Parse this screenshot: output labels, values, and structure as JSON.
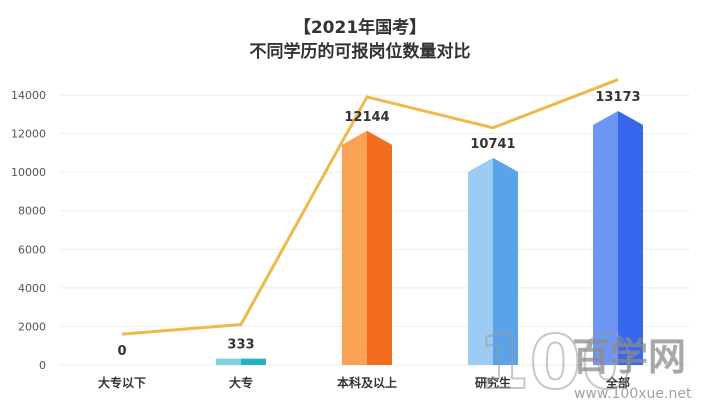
{
  "title_line1": "【2021年国考】",
  "title_line2": "不同学历的可报岗位数量对比",
  "watermark": {
    "text": "百学网",
    "url": "www.100xue.net",
    "logo": "100"
  },
  "colors": {
    "axis_text": "#555555",
    "grid": "#eeeeee",
    "line": "#f0b84a",
    "bar_gradients": [
      [
        "#7fd3db",
        "#27b3bd"
      ],
      [
        "#7fd3db",
        "#27b3bd"
      ],
      [
        "#f9a255",
        "#f26e1e"
      ],
      [
        "#9ccbf3",
        "#5ba3e8"
      ],
      [
        "#6f95f4",
        "#3767ec"
      ]
    ]
  },
  "chart_data": {
    "type": "bar",
    "title": "【2021年国考】 不同学历的可报岗位数量对比",
    "categories": [
      "大专以下",
      "大专",
      "本科及以上",
      "研究生",
      "全部"
    ],
    "values": [
      0,
      333,
      12144,
      10741,
      13173
    ],
    "data_labels": [
      "0",
      "333",
      "12144",
      "10741",
      "13173"
    ],
    "overlay_line": {
      "type": "line",
      "values": [
        1600,
        2100,
        13900,
        12300,
        14800
      ]
    },
    "ylim": [
      0,
      14000
    ],
    "yticks": [
      0,
      2000,
      4000,
      6000,
      8000,
      10000,
      12000,
      14000
    ],
    "ytick_labels": [
      "0",
      "2000",
      "4000",
      "6000",
      "8000",
      "10000",
      "12000",
      "14000"
    ],
    "xlabel": "",
    "ylabel": "",
    "grid": true,
    "legend": "none"
  }
}
